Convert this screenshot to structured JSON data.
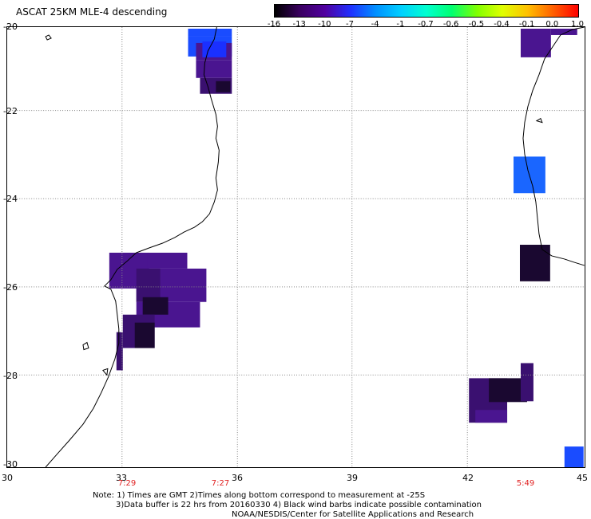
{
  "title": "ASCAT 25KM MLE-4 descending",
  "colorbar": {
    "ticks": [
      "-16",
      "-13",
      "-10",
      "-7",
      "-4",
      "-1",
      "-0.7",
      "-0.6",
      "-0.5",
      "-0.4",
      "-0.1",
      "0.0",
      "1.0"
    ],
    "colors": [
      "#000000",
      "#3a0060",
      "#5000a0",
      "#2030ff",
      "#0090ff",
      "#00d0ff",
      "#00ffd0",
      "#00ff70",
      "#80ff00",
      "#e0ff00",
      "#ffc000",
      "#ff6000",
      "#ff0000"
    ]
  },
  "axes": {
    "y_labels": [
      "-20",
      "-22",
      "-24",
      "-26",
      "-28",
      "-30"
    ],
    "x_labels": [
      "30",
      "33",
      "36",
      "39",
      "42",
      "45"
    ],
    "lon_range": [
      30,
      45
    ],
    "lat_range": [
      -20,
      -30
    ],
    "grid": "dotted"
  },
  "times": [
    {
      "label": "7:29",
      "lon": 33
    },
    {
      "label": "7:27",
      "lon": 35.7
    },
    {
      "label": "5:49",
      "lon": 43
    }
  ],
  "notes": {
    "line1": "Note: 1) Times are GMT 2)Times along bottom correspond to measurement at -25S",
    "line2": "3)Data buffer is 22 hrs from 20160330 4) Black wind barbs indicate possible contamination",
    "line3": "NOAA/NESDIS/Center for Satellite Applications and Research"
  },
  "swath_colors": {
    "blue": "#1a4cff",
    "light_blue": "#1a66ff",
    "purple": "#4a1590",
    "dark_purple": "#3a1070",
    "very_dark": "#1a0830"
  }
}
